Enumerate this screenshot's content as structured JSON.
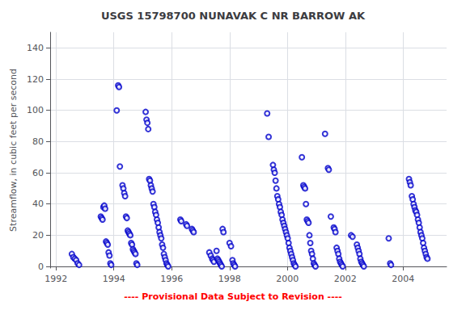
{
  "chart_data": {
    "type": "scatter",
    "title": "USGS 15798700 NUNAVAK C NR BARROW AK",
    "ylabel": "Streamflow, in cubic feet per second",
    "annotation": {
      "text": "---- Provisional Data Subject to Revision ----",
      "color": "#ff0000"
    },
    "color": "#0000cc",
    "marker": "circle",
    "grid": true,
    "xlim": [
      1991.8,
      2005.5
    ],
    "ylim": [
      -1,
      150
    ],
    "xticks": [
      1992,
      1994,
      1996,
      1998,
      2000,
      2002,
      2004
    ],
    "yticks": [
      0,
      20,
      40,
      60,
      80,
      100,
      120,
      140
    ],
    "x": [
      1992.55,
      1992.6,
      1992.65,
      1992.7,
      1992.75,
      1992.8,
      1993.55,
      1993.58,
      1993.61,
      1993.64,
      1993.67,
      1993.7,
      1993.73,
      1993.76,
      1993.79,
      1993.82,
      1993.85,
      1993.88,
      1993.91,
      1994.1,
      1994.15,
      1994.18,
      1994.21,
      1994.3,
      1994.33,
      1994.36,
      1994.39,
      1994.42,
      1994.45,
      1994.48,
      1994.51,
      1994.54,
      1994.57,
      1994.6,
      1994.63,
      1994.66,
      1994.69,
      1994.72,
      1994.75,
      1994.78,
      1994.81,
      1995.1,
      1995.13,
      1995.16,
      1995.19,
      1995.22,
      1995.25,
      1995.28,
      1995.31,
      1995.34,
      1995.37,
      1995.4,
      1995.43,
      1995.46,
      1995.49,
      1995.52,
      1995.55,
      1995.58,
      1995.61,
      1995.64,
      1995.67,
      1995.7,
      1995.73,
      1995.76,
      1995.79,
      1995.82,
      1995.85,
      1995.88,
      1996.3,
      1996.33,
      1996.5,
      1996.53,
      1996.7,
      1996.73,
      1996.76,
      1997.3,
      1997.35,
      1997.4,
      1997.43,
      1997.46,
      1997.55,
      1997.58,
      1997.61,
      1997.64,
      1997.67,
      1997.7,
      1997.73,
      1997.76,
      1997.79,
      1998.0,
      1998.05,
      1998.1,
      1998.13,
      1998.16,
      1998.19,
      1999.3,
      1999.35,
      1999.5,
      1999.53,
      1999.56,
      1999.59,
      1999.62,
      1999.65,
      1999.68,
      1999.71,
      1999.74,
      1999.77,
      1999.8,
      1999.83,
      1999.86,
      1999.89,
      1999.92,
      1999.95,
      1999.98,
      2000.01,
      2000.04,
      2000.07,
      2000.1,
      2000.13,
      2000.16,
      2000.19,
      2000.22,
      2000.25,
      2000.28,
      2000.5,
      2000.55,
      2000.58,
      2000.61,
      2000.64,
      2000.67,
      2000.7,
      2000.73,
      2000.76,
      2000.79,
      2000.82,
      2000.85,
      2000.88,
      2000.91,
      2000.94,
      2000.97,
      2001.3,
      2001.4,
      2001.43,
      2001.5,
      2001.6,
      2001.63,
      2001.66,
      2001.7,
      2001.73,
      2001.76,
      2001.79,
      2001.82,
      2001.85,
      2001.88,
      2001.91,
      2002.2,
      2002.25,
      2002.4,
      2002.43,
      2002.46,
      2002.49,
      2002.52,
      2002.55,
      2002.58,
      2002.61,
      2002.64,
      2003.5,
      2003.55,
      2003.58,
      2004.2,
      2004.23,
      2004.26,
      2004.3,
      2004.33,
      2004.36,
      2004.39,
      2004.42,
      2004.45,
      2004.48,
      2004.51,
      2004.54,
      2004.57,
      2004.6,
      2004.63,
      2004.66,
      2004.69,
      2004.72,
      2004.75,
      2004.78,
      2004.81,
      2004.84
    ],
    "values": [
      8,
      6,
      5,
      4,
      2,
      1,
      32,
      31,
      30,
      38,
      39,
      37,
      16,
      15,
      14,
      9,
      7,
      2,
      1,
      100,
      116,
      115,
      64,
      52,
      50,
      47,
      45,
      32,
      31,
      23,
      22,
      21,
      20,
      15,
      14,
      11,
      10,
      9,
      8,
      2,
      1,
      99,
      94,
      92,
      88,
      56,
      55,
      52,
      50,
      48,
      40,
      38,
      35,
      33,
      30,
      28,
      25,
      22,
      20,
      18,
      14,
      12,
      8,
      6,
      4,
      2,
      1,
      0,
      30,
      29,
      27,
      26,
      24,
      23,
      22,
      9,
      7,
      5,
      4,
      3,
      10,
      5,
      4,
      3,
      2,
      1,
      0,
      24,
      22,
      15,
      13,
      4,
      2,
      1,
      0,
      98,
      83,
      65,
      62,
      60,
      55,
      50,
      45,
      43,
      40,
      38,
      35,
      33,
      30,
      28,
      26,
      24,
      22,
      20,
      18,
      15,
      12,
      10,
      8,
      6,
      4,
      2,
      1,
      0,
      70,
      52,
      51,
      50,
      40,
      30,
      29,
      28,
      20,
      15,
      10,
      8,
      5,
      2,
      1,
      0,
      85,
      63,
      62,
      32,
      25,
      24,
      22,
      12,
      10,
      8,
      5,
      3,
      2,
      1,
      0,
      20,
      19,
      14,
      12,
      10,
      8,
      5,
      3,
      2,
      1,
      0,
      18,
      2,
      1,
      56,
      54,
      52,
      45,
      43,
      40,
      38,
      36,
      35,
      33,
      30,
      28,
      25,
      22,
      20,
      18,
      15,
      12,
      10,
      8,
      6,
      5
    ]
  }
}
